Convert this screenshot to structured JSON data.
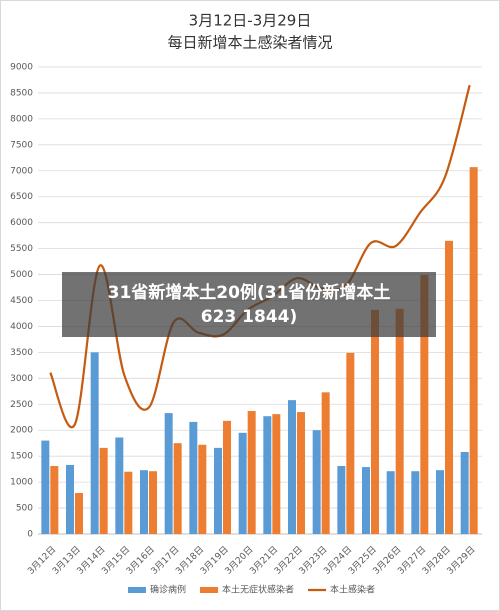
{
  "chart_data": {
    "type": "bar_line",
    "title": "3月12日-3月29日",
    "subtitle": "每日新增本土感染者情况",
    "categories": [
      "3月12日",
      "3月13日",
      "3月14日",
      "3月15日",
      "3月16日",
      "3月17日",
      "3月18日",
      "3月19日",
      "3月20日",
      "3月21日",
      "3月22日",
      "3月23日",
      "3月24日",
      "3月25日",
      "3月26日",
      "3月27日",
      "3月28日",
      "3月29日"
    ],
    "series": [
      {
        "name": "确诊病例",
        "color": "#5b9bd5",
        "kind": "bar",
        "values": [
          1800,
          1330,
          3500,
          1860,
          1230,
          2330,
          2160,
          1660,
          1950,
          2270,
          2580,
          2000,
          1310,
          1290,
          1210,
          1210,
          1230,
          1580
        ]
      },
      {
        "name": "本土无症状感染者",
        "color": "#ed7d31",
        "kind": "bar",
        "values": [
          1310,
          790,
          1660,
          1200,
          1210,
          1750,
          1720,
          2180,
          2370,
          2310,
          2350,
          2730,
          3490,
          4320,
          4340,
          4990,
          5650,
          7070
        ]
      },
      {
        "name": "本土感染者",
        "color": "#c55a11",
        "kind": "line",
        "values": [
          3110,
          2120,
          5170,
          3060,
          2440,
          4080,
          3880,
          3840,
          4320,
          4580,
          4930,
          4730,
          4800,
          5610,
          5550,
          6200,
          6880,
          8650
        ]
      }
    ],
    "ylim": [
      0,
      9000
    ],
    "yticks": [
      0,
      500,
      1000,
      1500,
      2000,
      2500,
      3000,
      3500,
      4000,
      4500,
      5000,
      5500,
      6000,
      6500,
      7000,
      7500,
      8000,
      8500,
      9000
    ],
    "grid": true
  },
  "overlay": {
    "lines": [
      "31省新增本土20例(31省份新增本土",
      "623 1844)"
    ]
  }
}
